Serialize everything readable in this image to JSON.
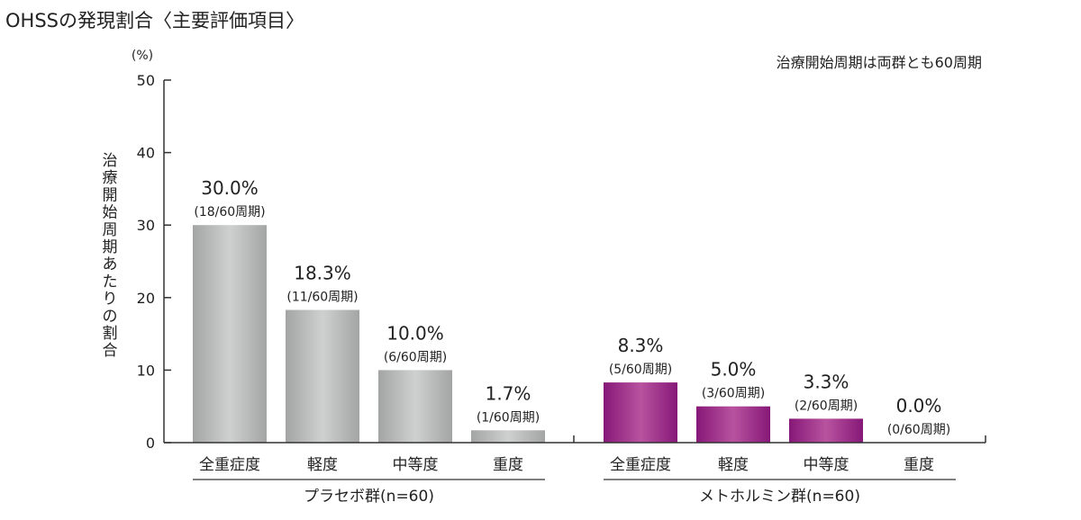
{
  "title": "OHSSの発現割合〈主要評価項目〉",
  "note": "治療開始周期は両群とも60周期",
  "chart_data": {
    "type": "bar",
    "ylabel": "治療開始周期あたりの割合",
    "yunit": "(%)",
    "ylim": [
      0,
      50
    ],
    "yticks": [
      0,
      10,
      20,
      30,
      40,
      50
    ],
    "categories": [
      "全重症度",
      "軽度",
      "中等度",
      "重度"
    ],
    "groups": [
      {
        "name": "プラセボ群(n=60)",
        "color": "#b8b9b9",
        "values": [
          30.0,
          18.3,
          10.0,
          1.7
        ],
        "value_labels": [
          "30.0%",
          "18.3%",
          "10.0%",
          "1.7%"
        ],
        "count_labels": [
          "(18/60周期)",
          "(11/60周期)",
          "(6/60周期)",
          "(1/60周期)"
        ]
      },
      {
        "name": "メトホルミン群(n=60)",
        "color": "#9a1e8a",
        "values": [
          8.3,
          5.0,
          3.3,
          0.0
        ],
        "value_labels": [
          "8.3%",
          "5.0%",
          "3.3%",
          "0.0%"
        ],
        "count_labels": [
          "(5/60周期)",
          "(3/60周期)",
          "(2/60周期)",
          "(0/60周期)"
        ]
      }
    ],
    "grid": false,
    "legend": "none"
  }
}
